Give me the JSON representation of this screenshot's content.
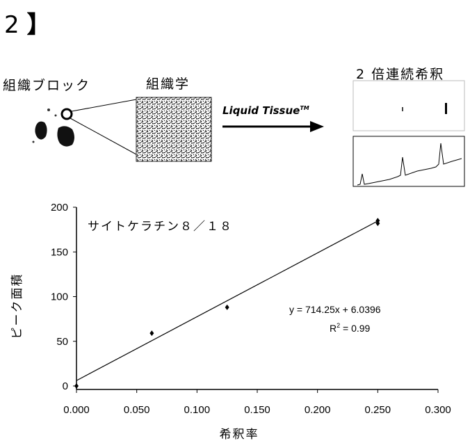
{
  "figure": {
    "label": "2",
    "bracket": "】",
    "block_label": "組織ブロック",
    "histology_label": "組織学",
    "dilution_label": "2 倍連続希釈",
    "process_label": "Liquid Tissue",
    "process_tm": "TM",
    "icons": [
      "tissue-block-image",
      "histology-micrograph",
      "gel-band-image",
      "chromatogram-image",
      "arrow-right-icon"
    ]
  },
  "chart_data": {
    "type": "scatter",
    "title": "",
    "annotation": "サイトケラチン８／１８",
    "equation": "y = 714.25x + 6.0396",
    "r2_text": "R² = 0.99",
    "r2_base": "R",
    "r2_sup": "2",
    "r2_rest": " = 0.99",
    "xlabel": "希釈率",
    "ylabel": "ピーク面積",
    "xlim": [
      0,
      0.3
    ],
    "ylim": [
      0,
      200
    ],
    "x_ticks": [
      "0.000",
      "0.050",
      "0.100",
      "0.150",
      "0.200",
      "0.250",
      "0.300"
    ],
    "x_tick_values": [
      0,
      0.05,
      0.1,
      0.15,
      0.2,
      0.25,
      0.3
    ],
    "y_ticks": [
      "0",
      "50",
      "100",
      "150",
      "200"
    ],
    "y_tick_values": [
      0,
      50,
      100,
      150,
      200
    ],
    "points": [
      {
        "x": 0.0,
        "y": 0
      },
      {
        "x": 0.0625,
        "y": 59
      },
      {
        "x": 0.125,
        "y": 88
      },
      {
        "x": 0.25,
        "y": 182
      },
      {
        "x": 0.25,
        "y": 185
      }
    ],
    "trendline": {
      "slope": 714.25,
      "intercept": 6.0396,
      "x_start": 0.0,
      "x_end": 0.25
    },
    "grid": false,
    "legend": "none"
  }
}
